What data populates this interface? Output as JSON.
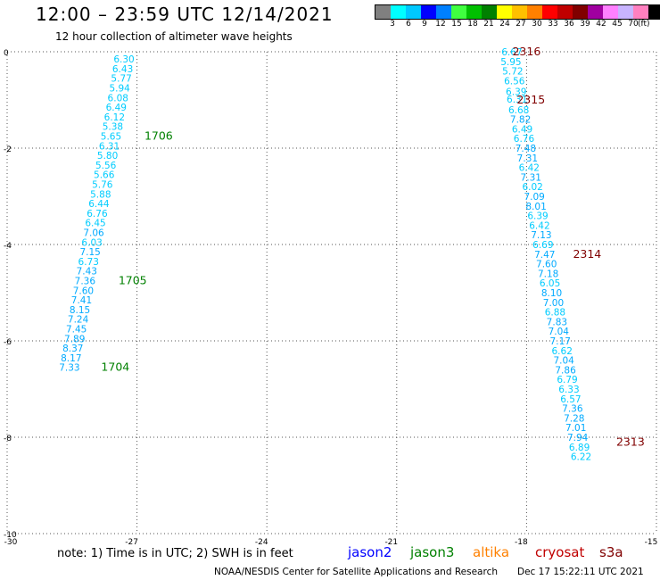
{
  "header": {
    "title": "12:00 – 23:59 UTC 12/14/2021",
    "subtitle": "12 hour collection of altimeter wave heights"
  },
  "colorbar": {
    "colors": [
      "#808080",
      "#00ffff",
      "#00c8ff",
      "#0000ff",
      "#0080ff",
      "#40ff40",
      "#00c000",
      "#008000",
      "#ffff00",
      "#ffc000",
      "#ff8000",
      "#ff0000",
      "#c00000",
      "#800000",
      "#a000a0",
      "#ff80ff",
      "#c8b4ff",
      "#ff80c0",
      "#000000"
    ],
    "labels": [
      "3",
      "6",
      "9",
      "12",
      "15",
      "18",
      "21",
      "24",
      "27",
      "30",
      "33",
      "36",
      "39",
      "42",
      "45",
      "70"
    ],
    "unit": "(ft)"
  },
  "axes": {
    "x_ticks": [
      "-30",
      "-27",
      "-24",
      "-21",
      "-18",
      "-15"
    ],
    "y_ticks": [
      "0",
      "-2",
      "-4",
      "-6",
      "-8",
      "-10"
    ]
  },
  "chart_data": {
    "type": "scatter",
    "xlim": [
      -30,
      -15
    ],
    "ylim": [
      -10,
      0
    ],
    "grid": true,
    "tracks": [
      {
        "name": "track-west",
        "points": [
          {
            "x": -27.3,
            "y": -0.15,
            "label": "6.30",
            "color": "#00ccff"
          },
          {
            "x": -27.33,
            "y": -0.35,
            "label": "6.43",
            "color": "#00ccff"
          },
          {
            "x": -27.36,
            "y": -0.55,
            "label": "5.77",
            "color": "#00ccff"
          },
          {
            "x": -27.4,
            "y": -0.75,
            "label": "5.94",
            "color": "#00ccff"
          },
          {
            "x": -27.44,
            "y": -0.95,
            "label": "6.08",
            "color": "#00ccff"
          },
          {
            "x": -27.48,
            "y": -1.15,
            "label": "6.49",
            "color": "#00ccff"
          },
          {
            "x": -27.52,
            "y": -1.35,
            "label": "6.12",
            "color": "#00ccff"
          },
          {
            "x": -27.56,
            "y": -1.55,
            "label": "5.38",
            "color": "#00ccff"
          },
          {
            "x": -27.6,
            "y": -1.75,
            "label": "5.65",
            "color": "#00ccff"
          },
          {
            "x": -27.64,
            "y": -1.95,
            "label": "6.31",
            "color": "#00ccff"
          },
          {
            "x": -27.68,
            "y": -2.15,
            "label": "5.80",
            "color": "#00ccff"
          },
          {
            "x": -27.72,
            "y": -2.35,
            "label": "5.56",
            "color": "#00ccff"
          },
          {
            "x": -27.76,
            "y": -2.55,
            "label": "5.66",
            "color": "#00ccff"
          },
          {
            "x": -27.8,
            "y": -2.75,
            "label": "5.76",
            "color": "#00ccff"
          },
          {
            "x": -27.84,
            "y": -2.95,
            "label": "5.88",
            "color": "#00ccff"
          },
          {
            "x": -27.88,
            "y": -3.15,
            "label": "6.44",
            "color": "#00ccff"
          },
          {
            "x": -27.92,
            "y": -3.35,
            "label": "6.76",
            "color": "#00ccff"
          },
          {
            "x": -27.96,
            "y": -3.55,
            "label": "6.45",
            "color": "#00ccff"
          },
          {
            "x": -28.0,
            "y": -3.75,
            "label": "7.06",
            "color": "#00aaff"
          },
          {
            "x": -28.04,
            "y": -3.95,
            "label": "6.03",
            "color": "#00ccff"
          },
          {
            "x": -28.08,
            "y": -4.15,
            "label": "7.15",
            "color": "#00aaff"
          },
          {
            "x": -28.12,
            "y": -4.35,
            "label": "6.73",
            "color": "#00ccff"
          },
          {
            "x": -28.16,
            "y": -4.55,
            "label": "7.43",
            "color": "#00aaff"
          },
          {
            "x": -28.2,
            "y": -4.75,
            "label": "7.36",
            "color": "#00aaff"
          },
          {
            "x": -28.24,
            "y": -4.95,
            "label": "7.60",
            "color": "#00aaff"
          },
          {
            "x": -28.28,
            "y": -5.15,
            "label": "7.41",
            "color": "#00aaff"
          },
          {
            "x": -28.32,
            "y": -5.35,
            "label": "8.15",
            "color": "#00aaff"
          },
          {
            "x": -28.36,
            "y": -5.55,
            "label": "7.24",
            "color": "#00aaff"
          },
          {
            "x": -28.4,
            "y": -5.75,
            "label": "7.45",
            "color": "#00aaff"
          },
          {
            "x": -28.44,
            "y": -5.95,
            "label": "7.89",
            "color": "#00aaff"
          },
          {
            "x": -28.48,
            "y": -6.15,
            "label": "8.37",
            "color": "#00aaff"
          },
          {
            "x": -28.52,
            "y": -6.35,
            "label": "8.17",
            "color": "#00aaff"
          },
          {
            "x": -28.56,
            "y": -6.55,
            "label": "7.33",
            "color": "#00aaff"
          }
        ]
      },
      {
        "name": "track-east",
        "points": [
          {
            "x": -18.34,
            "y": 0.0,
            "label": "6.67",
            "color": "#00ccff"
          },
          {
            "x": -18.36,
            "y": -0.2,
            "label": "5.95",
            "color": "#00ccff"
          },
          {
            "x": -18.32,
            "y": -0.4,
            "label": "5.72",
            "color": "#00ccff"
          },
          {
            "x": -18.28,
            "y": -0.6,
            "label": "6.56",
            "color": "#00ccff"
          },
          {
            "x": -18.24,
            "y": -0.82,
            "label": "6.39",
            "color": "#00ccff"
          },
          {
            "x": -18.22,
            "y": -0.98,
            "label": "6.31",
            "color": "#00ccff"
          },
          {
            "x": -18.18,
            "y": -1.2,
            "label": "6.68",
            "color": "#00ccff"
          },
          {
            "x": -18.14,
            "y": -1.4,
            "label": "7.82",
            "color": "#00aaff"
          },
          {
            "x": -18.1,
            "y": -1.6,
            "label": "6.49",
            "color": "#00ccff"
          },
          {
            "x": -18.06,
            "y": -1.8,
            "label": "6.76",
            "color": "#00ccff"
          },
          {
            "x": -18.02,
            "y": -2.0,
            "label": "7.48",
            "color": "#00aaff"
          },
          {
            "x": -17.98,
            "y": -2.2,
            "label": "7.31",
            "color": "#00aaff"
          },
          {
            "x": -17.94,
            "y": -2.4,
            "label": "6.42",
            "color": "#00ccff"
          },
          {
            "x": -17.9,
            "y": -2.6,
            "label": "7.31",
            "color": "#00aaff"
          },
          {
            "x": -17.86,
            "y": -2.8,
            "label": "6.02",
            "color": "#00ccff"
          },
          {
            "x": -17.82,
            "y": -3.0,
            "label": "7.09",
            "color": "#00aaff"
          },
          {
            "x": -17.78,
            "y": -3.2,
            "label": "8.01",
            "color": "#00aaff"
          },
          {
            "x": -17.74,
            "y": -3.4,
            "label": "6.39",
            "color": "#00ccff"
          },
          {
            "x": -17.7,
            "y": -3.6,
            "label": "6.42",
            "color": "#00ccff"
          },
          {
            "x": -17.66,
            "y": -3.8,
            "label": "7.13",
            "color": "#00aaff"
          },
          {
            "x": -17.62,
            "y": -4.0,
            "label": "6.69",
            "color": "#00ccff"
          },
          {
            "x": -17.58,
            "y": -4.2,
            "label": "7.47",
            "color": "#00aaff"
          },
          {
            "x": -17.54,
            "y": -4.4,
            "label": "7.60",
            "color": "#00aaff"
          },
          {
            "x": -17.5,
            "y": -4.6,
            "label": "7.18",
            "color": "#00aaff"
          },
          {
            "x": -17.46,
            "y": -4.8,
            "label": "6.05",
            "color": "#00ccff"
          },
          {
            "x": -17.42,
            "y": -5.0,
            "label": "8.10",
            "color": "#00aaff"
          },
          {
            "x": -17.38,
            "y": -5.2,
            "label": "7.00",
            "color": "#00aaff"
          },
          {
            "x": -17.34,
            "y": -5.4,
            "label": "6.88",
            "color": "#00ccff"
          },
          {
            "x": -17.3,
            "y": -5.6,
            "label": "7.83",
            "color": "#00aaff"
          },
          {
            "x": -17.26,
            "y": -5.8,
            "label": "7.04",
            "color": "#00aaff"
          },
          {
            "x": -17.22,
            "y": -6.0,
            "label": "7.17",
            "color": "#00aaff"
          },
          {
            "x": -17.18,
            "y": -6.2,
            "label": "6.62",
            "color": "#00ccff"
          },
          {
            "x": -17.14,
            "y": -6.4,
            "label": "7.04",
            "color": "#00aaff"
          },
          {
            "x": -17.1,
            "y": -6.6,
            "label": "7.86",
            "color": "#00aaff"
          },
          {
            "x": -17.06,
            "y": -6.8,
            "label": "6.79",
            "color": "#00ccff"
          },
          {
            "x": -17.02,
            "y": -7.0,
            "label": "6.33",
            "color": "#00ccff"
          },
          {
            "x": -16.98,
            "y": -7.2,
            "label": "6.57",
            "color": "#00ccff"
          },
          {
            "x": -16.94,
            "y": -7.4,
            "label": "7.36",
            "color": "#00aaff"
          },
          {
            "x": -16.9,
            "y": -7.6,
            "label": "7.28",
            "color": "#00aaff"
          },
          {
            "x": -16.86,
            "y": -7.8,
            "label": "7.01",
            "color": "#00aaff"
          },
          {
            "x": -16.82,
            "y": -8.0,
            "label": "7.94",
            "color": "#00aaff"
          },
          {
            "x": -16.78,
            "y": -8.2,
            "label": "6.89",
            "color": "#00ccff"
          },
          {
            "x": -16.74,
            "y": -8.4,
            "label": "6.22",
            "color": "#00ccff"
          }
        ]
      }
    ],
    "time_labels": [
      {
        "x": -26.5,
        "y": -1.75,
        "text": "1706",
        "color": "#008000"
      },
      {
        "x": -27.1,
        "y": -4.75,
        "text": "1705",
        "color": "#008000"
      },
      {
        "x": -27.5,
        "y": -6.55,
        "text": "1704",
        "color": "#008000"
      },
      {
        "x": -18.0,
        "y": 0.0,
        "text": "2316",
        "color": "#800000"
      },
      {
        "x": -17.9,
        "y": -1.0,
        "text": "2315",
        "color": "#800000"
      },
      {
        "x": -16.6,
        "y": -4.2,
        "text": "2314",
        "color": "#800000"
      },
      {
        "x": -15.6,
        "y": -8.1,
        "text": "2313",
        "color": "#800000"
      }
    ]
  },
  "footer": {
    "note": "note: 1) Time is in UTC; 2) SWH is in feet",
    "satellites": [
      {
        "name": "jason2",
        "color": "#0000ff"
      },
      {
        "name": "jason3",
        "color": "#008000"
      },
      {
        "name": "altika",
        "color": "#ff8000"
      },
      {
        "name": "cryosat",
        "color": "#c00000"
      },
      {
        "name": "s3a",
        "color": "#800000"
      }
    ],
    "credit": "NOAA/NESDIS Center for Satellite Applications and Research",
    "timestamp": "Dec 17 15:22:11 UTC 2021"
  }
}
